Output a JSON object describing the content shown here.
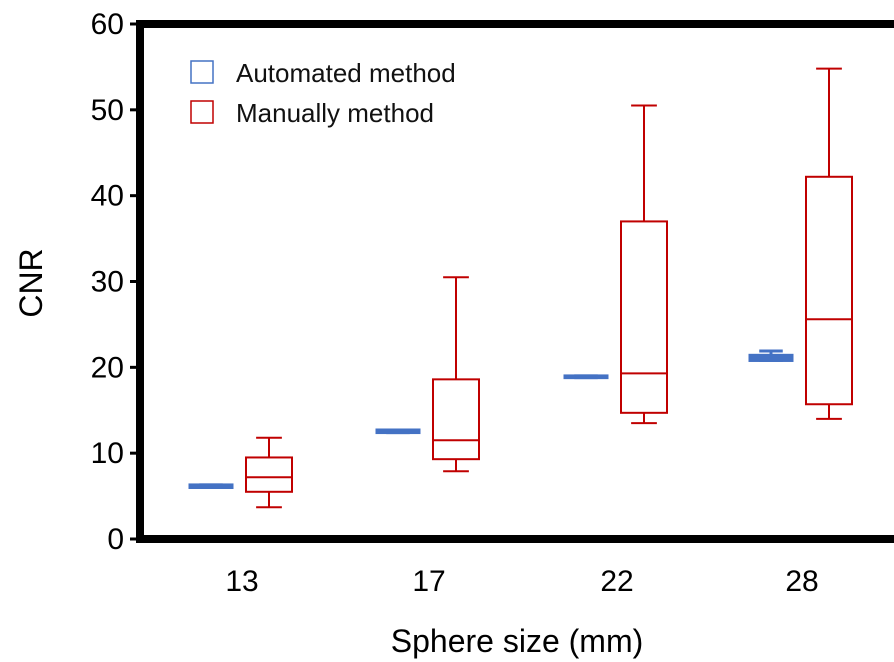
{
  "chart_data": {
    "type": "box",
    "xlabel": "Sphere size (mm)",
    "ylabel": "CNR",
    "ylim": [
      0,
      60
    ],
    "y_ticks": [
      0,
      10,
      20,
      30,
      40,
      50,
      60
    ],
    "categories": [
      "13",
      "17",
      "22",
      "28"
    ],
    "legend": {
      "placement": "top-left"
    },
    "grid": false,
    "series": [
      {
        "name": "Automated method",
        "color": "#4472c4",
        "boxes": [
          {
            "min": 6.0,
            "q1": 6.0,
            "median": 6.2,
            "q3": 6.3,
            "max": 6.3
          },
          {
            "min": 12.4,
            "q1": 12.4,
            "median": 12.6,
            "q3": 12.7,
            "max": 12.7
          },
          {
            "min": 18.8,
            "q1": 18.8,
            "median": 18.9,
            "q3": 19.0,
            "max": 19.0
          },
          {
            "min": 20.8,
            "q1": 20.8,
            "median": 21.1,
            "q3": 21.4,
            "max": 21.9
          }
        ]
      },
      {
        "name": "Manually method",
        "color": "#c00000",
        "boxes": [
          {
            "min": 3.7,
            "q1": 5.5,
            "median": 7.2,
            "q3": 9.5,
            "max": 11.8
          },
          {
            "min": 7.9,
            "q1": 9.3,
            "median": 11.5,
            "q3": 18.6,
            "max": 30.5
          },
          {
            "min": 13.5,
            "q1": 14.7,
            "median": 19.3,
            "q3": 37.0,
            "max": 50.5
          },
          {
            "min": 14.0,
            "q1": 15.7,
            "median": 25.6,
            "q3": 42.2,
            "max": 54.8
          }
        ]
      }
    ]
  }
}
